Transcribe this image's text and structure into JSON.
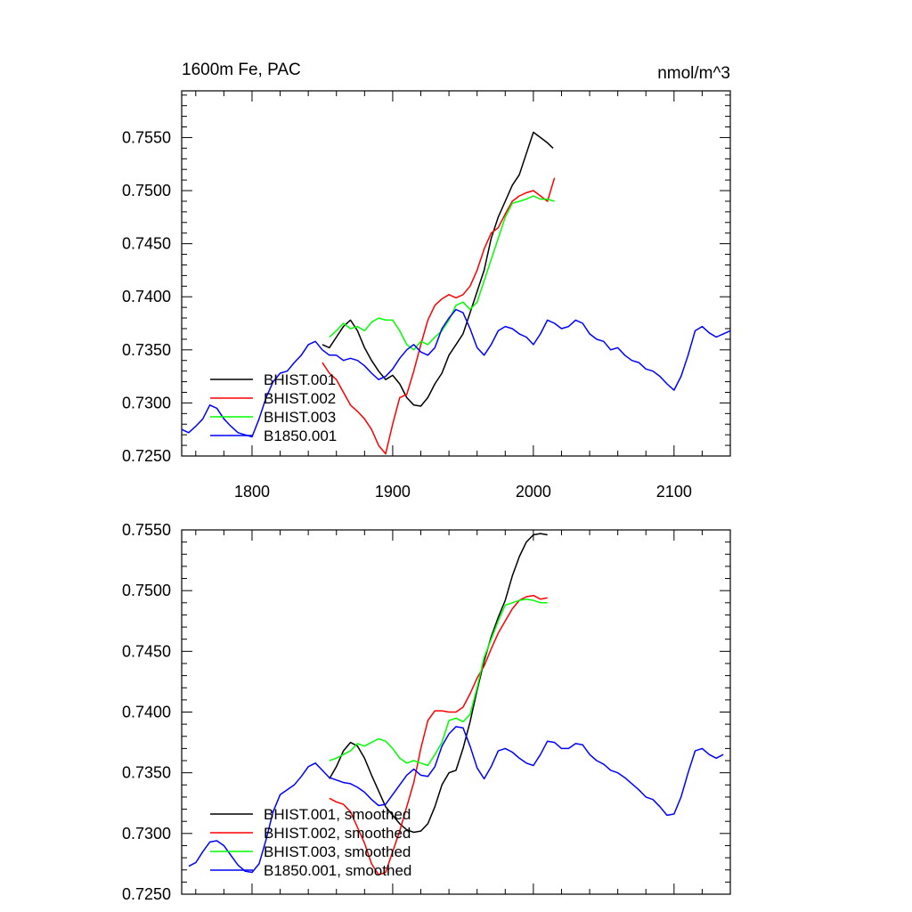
{
  "chart_data": [
    {
      "type": "line",
      "title": "1600m Fe, PAC",
      "units": "nmol/m^3",
      "xlim": [
        1750,
        2140
      ],
      "ylim": [
        0.725,
        0.7594
      ],
      "xticks": [
        "1800",
        "1900",
        "2000",
        "2100"
      ],
      "yticks": [
        "0.7250",
        "0.7300",
        "0.7350",
        "0.7400",
        "0.7450",
        "0.7500",
        "0.7550"
      ],
      "legend_position": "bottom-left",
      "series": [
        {
          "name": "BHIST.001",
          "color": "#000000",
          "x": [
            1850,
            1855,
            1860,
            1865,
            1870,
            1875,
            1880,
            1885,
            1890,
            1895,
            1900,
            1905,
            1910,
            1915,
            1920,
            1925,
            1930,
            1935,
            1940,
            1945,
            1950,
            1955,
            1960,
            1965,
            1970,
            1975,
            1980,
            1985,
            1990,
            1995,
            2000,
            2005,
            2010,
            2014
          ],
          "y": [
            0.7355,
            0.7352,
            0.7362,
            0.7372,
            0.7378,
            0.7368,
            0.7352,
            0.734,
            0.733,
            0.7322,
            0.7326,
            0.7318,
            0.7305,
            0.7298,
            0.7297,
            0.7305,
            0.7318,
            0.7328,
            0.7345,
            0.7355,
            0.7365,
            0.7385,
            0.7405,
            0.7425,
            0.7455,
            0.7475,
            0.749,
            0.7505,
            0.7515,
            0.7535,
            0.7555,
            0.755,
            0.7545,
            0.754
          ]
        },
        {
          "name": "BHIST.002",
          "color": "#ff0000",
          "x": [
            1850,
            1855,
            1860,
            1865,
            1870,
            1875,
            1880,
            1885,
            1890,
            1895,
            1900,
            1905,
            1910,
            1915,
            1920,
            1925,
            1930,
            1935,
            1940,
            1945,
            1950,
            1955,
            1960,
            1965,
            1970,
            1975,
            1980,
            1985,
            1990,
            1995,
            2000,
            2005,
            2010,
            2015
          ],
          "y": [
            0.7338,
            0.7328,
            0.7322,
            0.731,
            0.7298,
            0.7292,
            0.7285,
            0.7275,
            0.726,
            0.7252,
            0.728,
            0.7305,
            0.7308,
            0.733,
            0.7355,
            0.7378,
            0.7392,
            0.7398,
            0.7402,
            0.7399,
            0.7402,
            0.741,
            0.7425,
            0.7445,
            0.746,
            0.7465,
            0.7478,
            0.749,
            0.7495,
            0.7498,
            0.75,
            0.7495,
            0.749,
            0.7512
          ]
        },
        {
          "name": "BHIST.003",
          "color": "#00ff00",
          "x": [
            1855,
            1860,
            1865,
            1870,
            1875,
            1880,
            1885,
            1890,
            1895,
            1900,
            1905,
            1910,
            1915,
            1920,
            1925,
            1930,
            1935,
            1940,
            1945,
            1950,
            1955,
            1960,
            1965,
            1970,
            1975,
            1980,
            1985,
            1990,
            1995,
            2000,
            2005,
            2010,
            2015
          ],
          "y": [
            0.7362,
            0.7368,
            0.7375,
            0.737,
            0.7372,
            0.7368,
            0.7376,
            0.738,
            0.7378,
            0.7378,
            0.7368,
            0.7355,
            0.735,
            0.7358,
            0.7355,
            0.7362,
            0.7368,
            0.7378,
            0.7392,
            0.7395,
            0.7388,
            0.7395,
            0.7415,
            0.7435,
            0.7455,
            0.7475,
            0.7488,
            0.749,
            0.7492,
            0.7495,
            0.7492,
            0.7492,
            0.749
          ]
        },
        {
          "name": "B1850.001",
          "color": "#0000ff",
          "x": [
            1750,
            1755,
            1760,
            1765,
            1770,
            1775,
            1780,
            1785,
            1790,
            1795,
            1800,
            1805,
            1810,
            1815,
            1820,
            1825,
            1830,
            1835,
            1840,
            1845,
            1850,
            1855,
            1860,
            1865,
            1870,
            1875,
            1880,
            1885,
            1890,
            1895,
            1900,
            1905,
            1910,
            1915,
            1920,
            1925,
            1930,
            1935,
            1940,
            1945,
            1950,
            1955,
            1960,
            1965,
            1970,
            1975,
            1980,
            1985,
            1990,
            1995,
            2000,
            2005,
            2010,
            2015,
            2020,
            2025,
            2030,
            2035,
            2040,
            2045,
            2050,
            2055,
            2060,
            2065,
            2070,
            2075,
            2080,
            2085,
            2090,
            2095,
            2100,
            2105,
            2110,
            2115,
            2120,
            2125,
            2130,
            2135,
            2140
          ],
          "y": [
            0.7275,
            0.7272,
            0.7278,
            0.7285,
            0.7298,
            0.7295,
            0.7285,
            0.7278,
            0.7272,
            0.727,
            0.7268,
            0.7285,
            0.7305,
            0.732,
            0.7328,
            0.733,
            0.7338,
            0.7345,
            0.7355,
            0.7358,
            0.735,
            0.7345,
            0.7345,
            0.734,
            0.7342,
            0.734,
            0.7335,
            0.7328,
            0.7322,
            0.7325,
            0.7332,
            0.7342,
            0.735,
            0.7355,
            0.7348,
            0.7345,
            0.7352,
            0.737,
            0.738,
            0.7388,
            0.7385,
            0.737,
            0.7352,
            0.7345,
            0.7355,
            0.7368,
            0.7372,
            0.737,
            0.7365,
            0.7362,
            0.7355,
            0.7365,
            0.7378,
            0.7375,
            0.737,
            0.7372,
            0.7378,
            0.7375,
            0.7365,
            0.736,
            0.7358,
            0.735,
            0.7352,
            0.7345,
            0.734,
            0.7338,
            0.7332,
            0.733,
            0.7325,
            0.7318,
            0.7312,
            0.7325,
            0.7345,
            0.7368,
            0.7372,
            0.7366,
            0.7362,
            0.7365,
            0.7368
          ]
        }
      ]
    },
    {
      "type": "line",
      "xlim": [
        1750,
        2140
      ],
      "ylim": [
        0.725,
        0.755
      ],
      "xticks": [
        "",
        "",
        "",
        ""
      ],
      "yticks": [
        "0.7250",
        "0.7300",
        "0.7350",
        "0.7400",
        "0.7450",
        "0.7500",
        "0.7550"
      ],
      "legend_position": "bottom-left",
      "series": [
        {
          "name": "BHIST.001, smoothed",
          "color": "#000000",
          "x": [
            1855,
            1860,
            1865,
            1870,
            1875,
            1880,
            1885,
            1890,
            1895,
            1900,
            1905,
            1910,
            1915,
            1920,
            1925,
            1930,
            1935,
            1940,
            1945,
            1950,
            1955,
            1960,
            1965,
            1970,
            1975,
            1980,
            1985,
            1990,
            1995,
            2000,
            2005,
            2010
          ],
          "y": [
            0.7345,
            0.7355,
            0.7368,
            0.7375,
            0.7372,
            0.7362,
            0.7348,
            0.7335,
            0.7322,
            0.7315,
            0.7308,
            0.7303,
            0.7301,
            0.7302,
            0.7308,
            0.7322,
            0.734,
            0.735,
            0.7352,
            0.737,
            0.7392,
            0.7418,
            0.7442,
            0.7462,
            0.7478,
            0.7492,
            0.7512,
            0.7528,
            0.754,
            0.7546,
            0.7547,
            0.7546
          ]
        },
        {
          "name": "BHIST.002, smoothed",
          "color": "#ff0000",
          "x": [
            1855,
            1860,
            1865,
            1870,
            1875,
            1880,
            1885,
            1890,
            1895,
            1900,
            1905,
            1910,
            1915,
            1920,
            1925,
            1930,
            1935,
            1940,
            1945,
            1950,
            1955,
            1960,
            1965,
            1970,
            1975,
            1980,
            1985,
            1990,
            1995,
            2000,
            2005,
            2010
          ],
          "y": [
            0.7329,
            0.7326,
            0.7324,
            0.7318,
            0.7305,
            0.7292,
            0.7275,
            0.7266,
            0.7268,
            0.7285,
            0.7302,
            0.7322,
            0.7342,
            0.737,
            0.7393,
            0.7401,
            0.7401,
            0.74,
            0.74,
            0.7404,
            0.7415,
            0.7428,
            0.7438,
            0.7452,
            0.7465,
            0.7475,
            0.7485,
            0.7492,
            0.7495,
            0.7496,
            0.7493,
            0.7494
          ]
        },
        {
          "name": "BHIST.003, smoothed",
          "color": "#00ff00",
          "x": [
            1855,
            1860,
            1865,
            1870,
            1875,
            1880,
            1885,
            1890,
            1895,
            1900,
            1905,
            1910,
            1915,
            1920,
            1925,
            1930,
            1935,
            1940,
            1945,
            1950,
            1955,
            1960,
            1965,
            1970,
            1975,
            1980,
            1985,
            1990,
            1995,
            2000,
            2005,
            2010
          ],
          "y": [
            0.736,
            0.7362,
            0.7365,
            0.7368,
            0.7374,
            0.7372,
            0.7375,
            0.7378,
            0.7376,
            0.737,
            0.7362,
            0.7358,
            0.736,
            0.7358,
            0.7356,
            0.7365,
            0.7375,
            0.7393,
            0.7395,
            0.7392,
            0.7398,
            0.742,
            0.7445,
            0.746,
            0.7475,
            0.7488,
            0.749,
            0.7492,
            0.7493,
            0.7492,
            0.749,
            0.749
          ]
        },
        {
          "name": "B1850.001, smoothed",
          "color": "#0000ff",
          "x": [
            1755,
            1760,
            1765,
            1770,
            1775,
            1780,
            1785,
            1790,
            1795,
            1800,
            1805,
            1810,
            1815,
            1820,
            1825,
            1830,
            1835,
            1840,
            1845,
            1850,
            1855,
            1860,
            1865,
            1870,
            1875,
            1880,
            1885,
            1890,
            1895,
            1900,
            1905,
            1910,
            1915,
            1920,
            1925,
            1930,
            1935,
            1940,
            1945,
            1950,
            1955,
            1960,
            1965,
            1970,
            1975,
            1980,
            1985,
            1990,
            1995,
            2000,
            2005,
            2010,
            2015,
            2020,
            2025,
            2030,
            2035,
            2040,
            2045,
            2050,
            2055,
            2060,
            2065,
            2070,
            2075,
            2080,
            2085,
            2090,
            2095,
            2100,
            2105,
            2110,
            2115,
            2120,
            2125,
            2130,
            2135
          ],
          "y": [
            0.7273,
            0.7276,
            0.7285,
            0.7293,
            0.7294,
            0.729,
            0.7282,
            0.7274,
            0.7269,
            0.7268,
            0.7275,
            0.7295,
            0.7318,
            0.7332,
            0.7336,
            0.734,
            0.7347,
            0.7355,
            0.7358,
            0.7352,
            0.7346,
            0.7344,
            0.7342,
            0.7341,
            0.7338,
            0.7334,
            0.7328,
            0.7323,
            0.7324,
            0.7332,
            0.734,
            0.7348,
            0.7353,
            0.7348,
            0.7347,
            0.7355,
            0.7372,
            0.7382,
            0.7388,
            0.7387,
            0.7372,
            0.7354,
            0.7345,
            0.7355,
            0.7368,
            0.737,
            0.7367,
            0.7362,
            0.7358,
            0.7356,
            0.7365,
            0.7376,
            0.7375,
            0.737,
            0.737,
            0.7374,
            0.7373,
            0.7365,
            0.736,
            0.7357,
            0.7352,
            0.735,
            0.7346,
            0.7341,
            0.7336,
            0.733,
            0.7328,
            0.7322,
            0.7315,
            0.7316,
            0.733,
            0.735,
            0.7368,
            0.737,
            0.7365,
            0.7362,
            0.7365
          ]
        }
      ]
    }
  ]
}
